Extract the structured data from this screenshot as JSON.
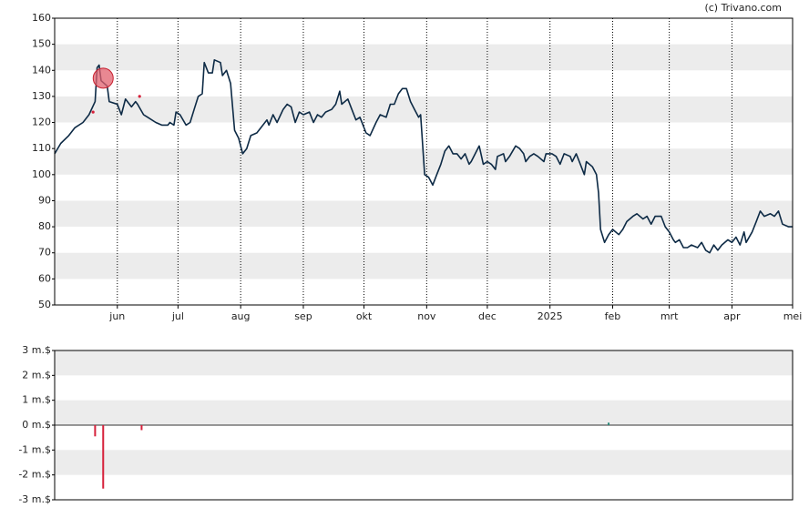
{
  "credit": "(c) Trivano.com",
  "chart_data": [
    {
      "type": "line",
      "color": "#0d2a45",
      "xlim": [
        0,
        365
      ],
      "xticks": [
        {
          "value": 31,
          "label": "jun"
        },
        {
          "value": 61,
          "label": "jul"
        },
        {
          "value": 92,
          "label": "aug"
        },
        {
          "value": 123,
          "label": "sep"
        },
        {
          "value": 153,
          "label": "okt"
        },
        {
          "value": 184,
          "label": "nov"
        },
        {
          "value": 214,
          "label": "dec"
        },
        {
          "value": 245,
          "label": "2025"
        },
        {
          "value": 276,
          "label": "feb"
        },
        {
          "value": 304,
          "label": "mrt"
        },
        {
          "value": 335,
          "label": "apr"
        },
        {
          "value": 365,
          "label": "mei"
        }
      ],
      "ylim": [
        50,
        160
      ],
      "yticks": [
        50,
        60,
        70,
        80,
        90,
        100,
        110,
        120,
        130,
        140,
        150,
        160
      ],
      "x": [
        0,
        3,
        7,
        10,
        14,
        17,
        20,
        21,
        22,
        23,
        26,
        27,
        31,
        33,
        35,
        36,
        38,
        40,
        41,
        44,
        46,
        50,
        53,
        56,
        57,
        59,
        60,
        62,
        65,
        67,
        69,
        71,
        73,
        74,
        76,
        78,
        79,
        82,
        83,
        85,
        87,
        89,
        91,
        93,
        95,
        97,
        100,
        102,
        105,
        106,
        108,
        110,
        113,
        115,
        117,
        119,
        121,
        123,
        126,
        128,
        130,
        132,
        134,
        137,
        139,
        141,
        142,
        145,
        147,
        149,
        151,
        154,
        156,
        159,
        161,
        164,
        166,
        168,
        170,
        172,
        174,
        176,
        178,
        180,
        181,
        183,
        185,
        187,
        189,
        191,
        193,
        195,
        197,
        199,
        201,
        203,
        205,
        206,
        208,
        210,
        212,
        214,
        216,
        218,
        219,
        222,
        223,
        225,
        228,
        230,
        232,
        233,
        235,
        237,
        239,
        242,
        243,
        246,
        248,
        250,
        252,
        255,
        256,
        258,
        260,
        262,
        263,
        266,
        268,
        269,
        270,
        272,
        274,
        276,
        279,
        281,
        283,
        286,
        288,
        291,
        293,
        295,
        297,
        300,
        302,
        304,
        306,
        307,
        309,
        311,
        313,
        315,
        318,
        320,
        322,
        324,
        326,
        328,
        330,
        333,
        335,
        337,
        339,
        341,
        342,
        345,
        347,
        349,
        351,
        354,
        356,
        358,
        360,
        363,
        365
      ],
      "values": [
        108,
        112,
        115,
        118,
        120,
        123,
        128,
        141,
        142,
        136,
        134,
        128,
        127,
        123,
        129,
        128,
        126,
        128,
        127,
        123,
        122,
        120,
        119,
        119,
        120,
        119,
        124,
        123,
        119,
        120,
        125,
        130,
        131,
        143,
        139,
        139,
        144,
        143,
        138,
        140,
        135,
        117,
        114,
        108,
        110,
        115,
        116,
        118,
        121,
        119,
        123,
        120,
        125,
        127,
        126,
        120,
        124,
        123,
        124,
        120,
        123,
        122,
        124,
        125,
        127,
        132,
        127,
        129,
        125,
        121,
        122,
        116,
        115,
        120,
        123,
        122,
        127,
        127,
        131,
        133,
        133,
        128,
        125,
        122,
        123,
        100,
        99,
        96,
        100,
        104,
        109,
        111,
        108,
        108,
        106,
        108,
        104,
        105,
        108,
        111,
        104,
        105,
        104,
        102,
        107,
        108,
        105,
        107,
        111,
        110,
        108,
        105,
        107,
        108,
        107,
        105,
        108,
        108,
        107,
        104,
        108,
        107,
        105,
        108,
        104,
        100,
        105,
        103,
        100,
        93,
        79,
        74,
        77,
        79,
        77,
        79,
        82,
        84,
        85,
        83,
        84,
        81,
        84,
        84,
        80,
        78,
        75,
        74,
        75,
        72,
        72,
        73,
        72,
        74,
        71,
        70,
        73,
        71,
        73,
        75,
        74,
        76,
        73,
        78,
        74,
        78,
        82,
        86,
        84,
        85,
        84,
        86,
        81,
        80,
        80
      ],
      "markers": {
        "color": "#d6203a",
        "x": [
          19,
          42
        ],
        "y": [
          124,
          130
        ]
      },
      "highlight": {
        "color": "#e2606d",
        "x": 24,
        "y": 137
      }
    },
    {
      "type": "bar",
      "xlim": [
        0,
        365
      ],
      "ylim": [
        -3,
        3
      ],
      "yticks": [
        {
          "value": -3,
          "label": "-3 m.$"
        },
        {
          "value": -2,
          "label": "-2 m.$"
        },
        {
          "value": -1,
          "label": "-1 m.$"
        },
        {
          "value": 0,
          "label": "0 m.$"
        },
        {
          "value": 1,
          "label": "1 m.$"
        },
        {
          "value": 2,
          "label": "2 m.$"
        },
        {
          "value": 3,
          "label": "3 m.$"
        }
      ],
      "x": [
        20,
        24,
        43,
        274
      ],
      "values": [
        -0.45,
        -2.55,
        -0.2,
        0.1
      ],
      "colors": [
        "#d6203a",
        "#d6203a",
        "#d6203a",
        "#2a8a7a"
      ]
    }
  ]
}
